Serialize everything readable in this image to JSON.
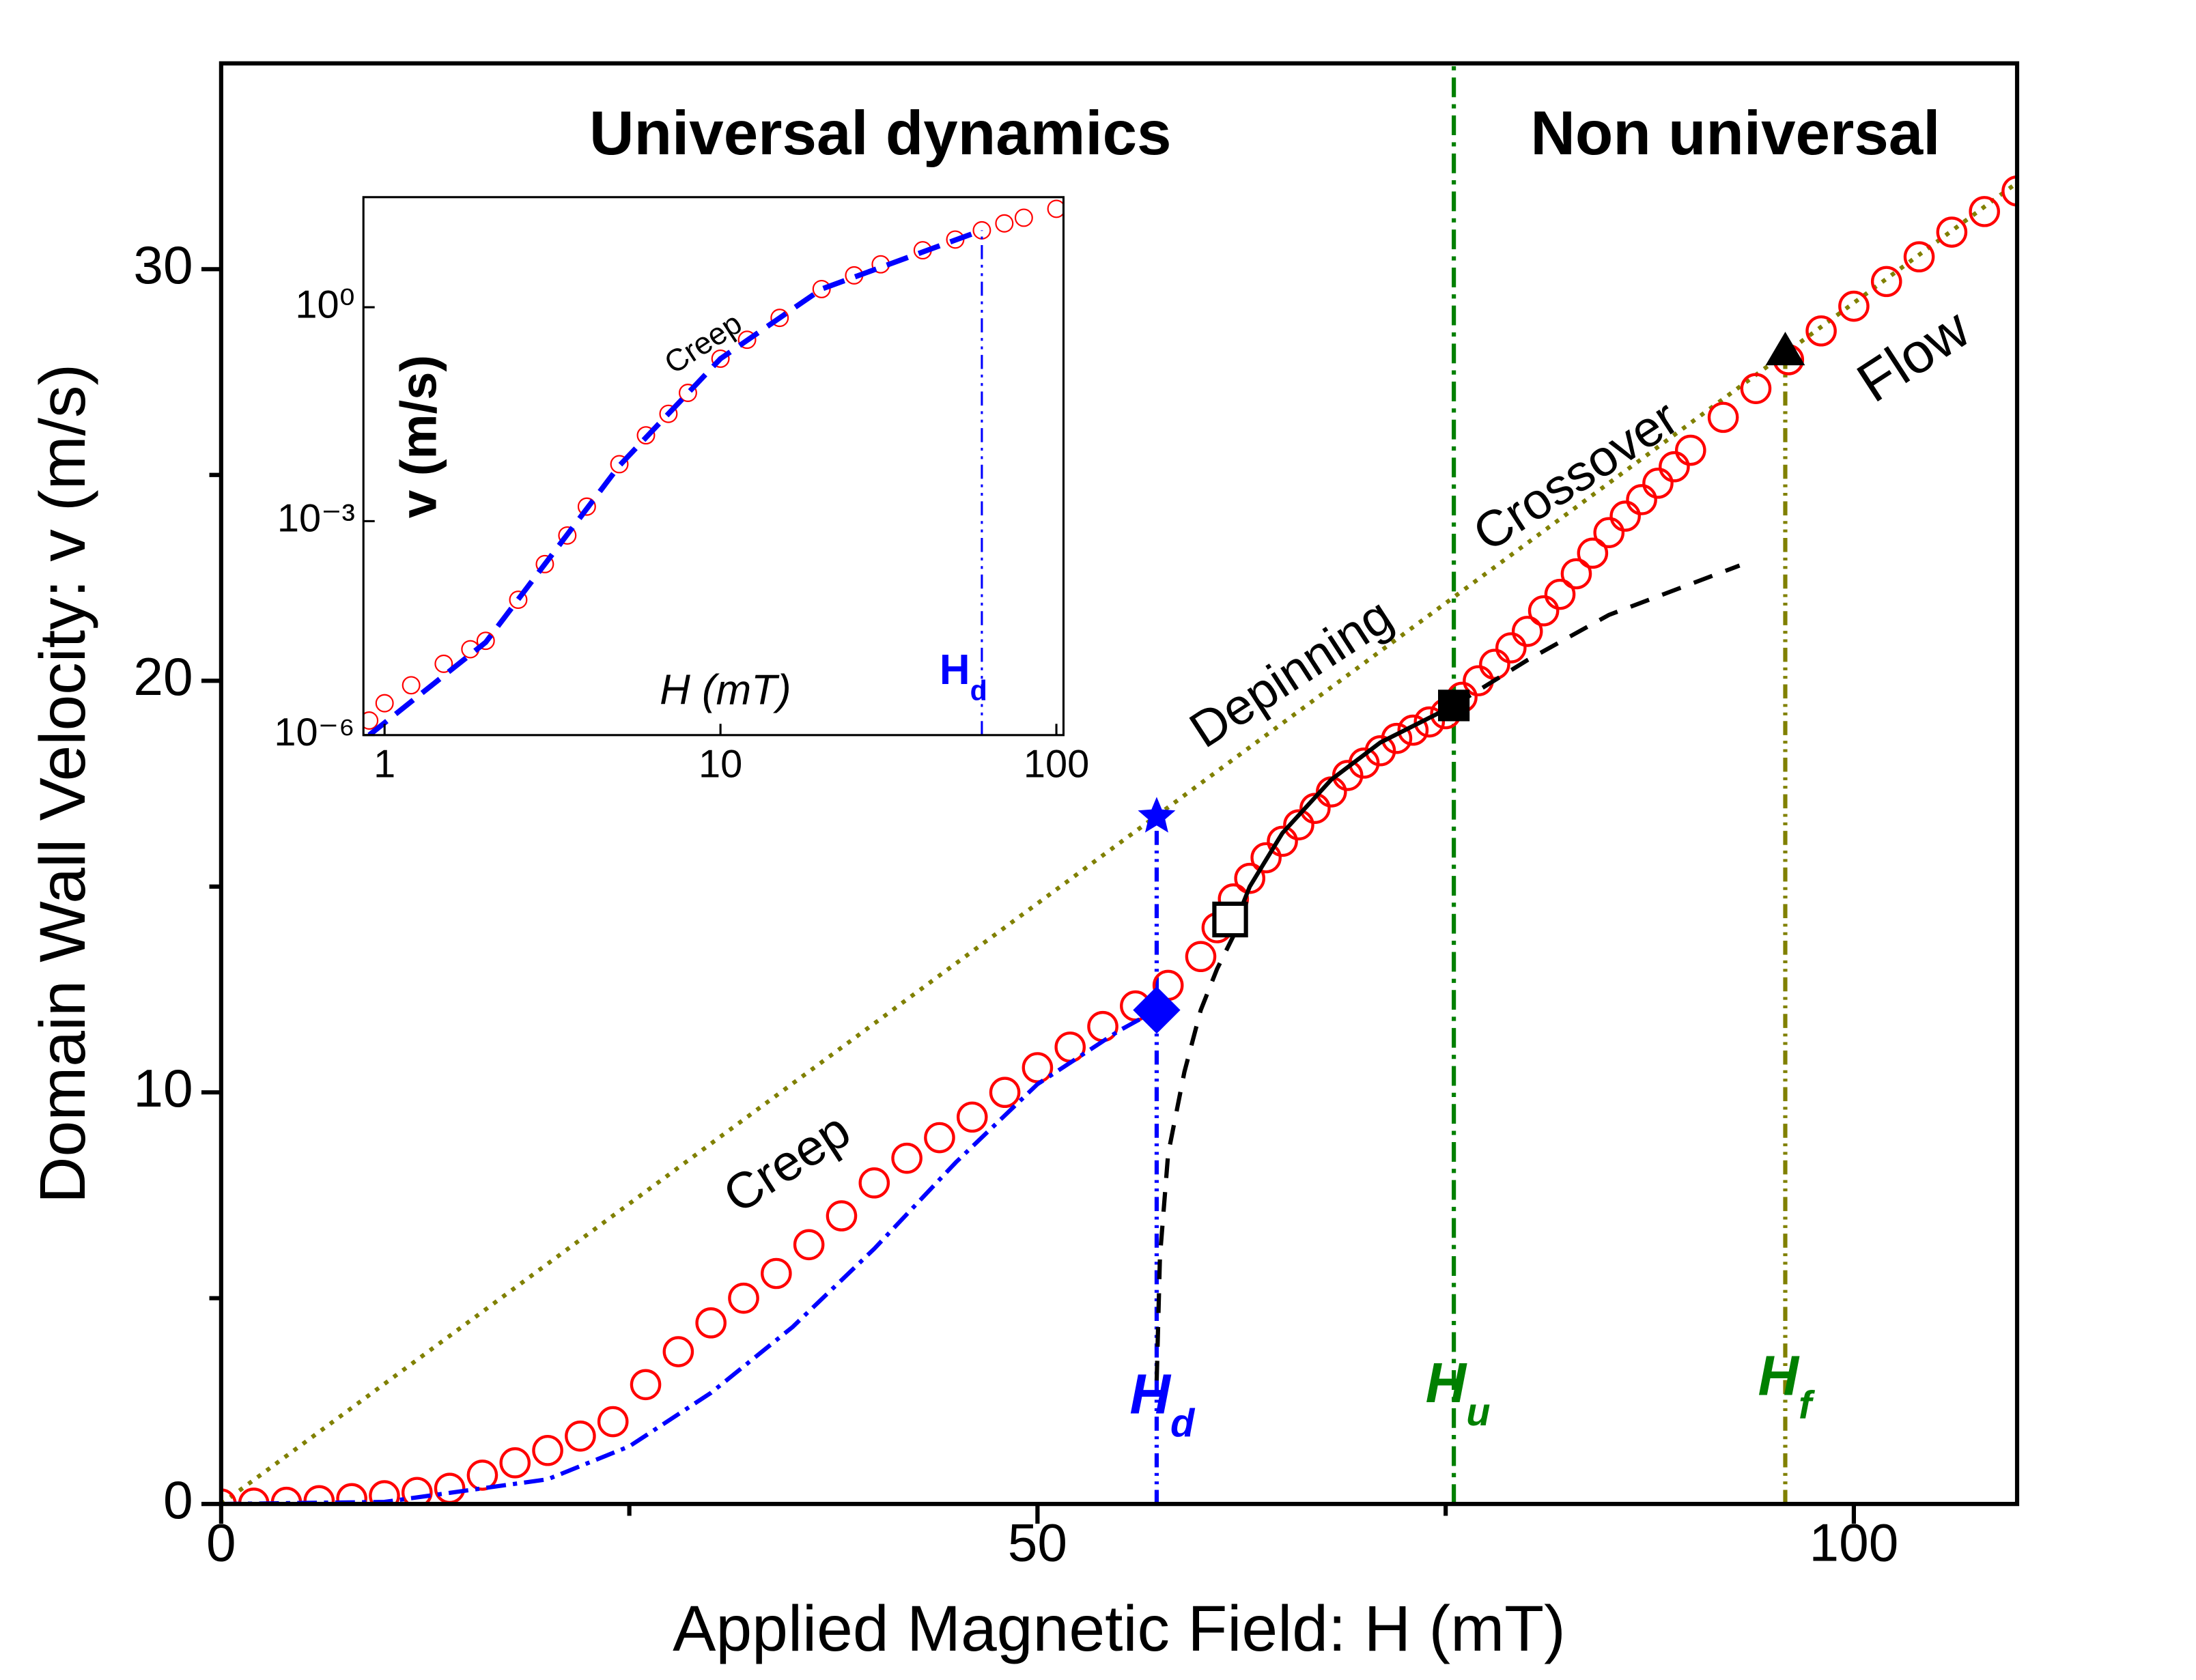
{
  "chart_data": [
    {
      "type": "scatter",
      "xlabel": "Applied Magnetic Field: H (mT)",
      "ylabel": "Domain Wall Velocity: v (m/s)",
      "xlim": [
        0,
        110
      ],
      "ylim": [
        0,
        35
      ],
      "xticks": [
        0,
        50,
        100
      ],
      "yticks": [
        0,
        10,
        20,
        30
      ],
      "xminor": [
        25,
        75
      ],
      "yminor": [
        5,
        15,
        25
      ],
      "annotations": [
        {
          "text": "Universal dynamics"
        },
        {
          "text": "Non universal"
        },
        {
          "text": "Creep"
        },
        {
          "text": "Depinning"
        },
        {
          "text": "Crossover"
        },
        {
          "text": "Flow"
        },
        {
          "text": "H",
          "sub": "d"
        },
        {
          "text": "H",
          "sub": "u"
        },
        {
          "text": "H",
          "sub": "f"
        }
      ],
      "series": [
        {
          "color": "#808000",
          "line": "dot",
          "x": [
            0,
            110
          ],
          "values": [
            0,
            32.1
          ]
        },
        {
          "color": "#008000",
          "line": "dashdot",
          "x": [
            75.5,
            75.5
          ],
          "values": [
            0,
            35
          ]
        },
        {
          "color": "#808000",
          "line": "dashdotdot",
          "x": [
            95.8,
            95.8
          ],
          "values": [
            0,
            28
          ]
        },
        {
          "color": "#0000ff",
          "line": "dashdotdot",
          "x": [
            57.3,
            57.3
          ],
          "values": [
            0,
            16.7
          ]
        },
        {
          "color": "#ff0000",
          "marker": "open-circle",
          "x": [
            0,
            2,
            4,
            6,
            8,
            10,
            12,
            14,
            16,
            18,
            20,
            22,
            24,
            26,
            28,
            30,
            32,
            34,
            36,
            38,
            40,
            42,
            44,
            46,
            48,
            50,
            52,
            54,
            56,
            58,
            60,
            61,
            62,
            63,
            64,
            65,
            66,
            67,
            68,
            69,
            70,
            71,
            72,
            73,
            74,
            75,
            76,
            77,
            78,
            79,
            80,
            81,
            82,
            83,
            84,
            85,
            86,
            87,
            88,
            89,
            90,
            92,
            94,
            96,
            98,
            100,
            102,
            104,
            106,
            108,
            110
          ],
          "values": [
            0,
            0.02,
            0.04,
            0.08,
            0.13,
            0.2,
            0.28,
            0.38,
            0.7,
            1.0,
            1.3,
            1.65,
            2.0,
            2.9,
            3.7,
            4.4,
            5.0,
            5.6,
            6.3,
            7.0,
            7.8,
            8.4,
            8.9,
            9.4,
            10.0,
            10.6,
            11.1,
            11.6,
            12.1,
            12.6,
            13.3,
            14.0,
            14.7,
            15.2,
            15.7,
            16.1,
            16.5,
            16.9,
            17.3,
            17.7,
            18.0,
            18.3,
            18.6,
            18.8,
            19.0,
            19.2,
            19.6,
            20.0,
            20.4,
            20.8,
            21.2,
            21.7,
            22.1,
            22.6,
            23.1,
            23.6,
            24.0,
            24.4,
            24.8,
            25.2,
            25.6,
            26.4,
            27.1,
            27.8,
            28.5,
            29.1,
            29.7,
            30.3,
            30.9,
            31.4,
            31.9
          ]
        },
        {
          "color": "#0000ff",
          "line": "dashdot",
          "x": [
            0,
            10,
            20,
            25,
            30,
            35,
            40,
            45,
            50,
            55,
            57.3
          ],
          "values": [
            0,
            0.05,
            0.6,
            1.4,
            2.7,
            4.3,
            6.2,
            8.3,
            10.2,
            11.5,
            12
          ]
        },
        {
          "color": "#000000",
          "line": "dash",
          "x": [
            57.3,
            57.5,
            58,
            59,
            60,
            61,
            62
          ],
          "values": [
            3,
            6,
            8.5,
            10.5,
            12,
            13,
            13.8
          ]
        },
        {
          "color": "#000000",
          "line": "solid",
          "x": [
            61.8,
            63,
            65,
            68,
            71,
            75.5
          ],
          "values": [
            13.8,
            15,
            16.3,
            17.6,
            18.5,
            19.4
          ]
        },
        {
          "color": "#000000",
          "line": "dash",
          "x": [
            75.5,
            80,
            85,
            93
          ],
          "values": [
            19.4,
            20.5,
            21.6,
            22.8
          ]
        },
        {
          "color": "#0000ff",
          "marker": "star",
          "x": [
            57.3
          ],
          "values": [
            16.7
          ]
        },
        {
          "color": "#0000ff",
          "marker": "diamond",
          "x": [
            57.3
          ],
          "values": [
            12
          ]
        },
        {
          "color": "#000000",
          "marker": "open-square",
          "x": [
            61.8
          ],
          "values": [
            14.2
          ]
        },
        {
          "color": "#000000",
          "marker": "square",
          "x": [
            75.5
          ],
          "values": [
            19.4
          ]
        },
        {
          "color": "#000000",
          "marker": "triangle",
          "x": [
            95.8
          ],
          "values": [
            28
          ]
        }
      ]
    },
    {
      "type": "scatter",
      "xlabel": "H (mT)",
      "ylabel": "v (m/s)",
      "xlog": true,
      "ylog": true,
      "xlim": [
        0.865,
        105
      ],
      "ylim": [
        1e-06,
        35
      ],
      "xticks": [
        1,
        10,
        100
      ],
      "yticks": [
        {
          "value": 1e-06,
          "label": "10⁻⁶"
        },
        {
          "value": 0.001,
          "label": "10⁻³"
        },
        {
          "value": 1,
          "label": "10⁰"
        }
      ],
      "annotations": [
        {
          "text": "Creep"
        },
        {
          "text": "H",
          "sub": "d"
        }
      ],
      "series": [
        {
          "color": "#ff0000",
          "marker": "open-circle",
          "x": [
            0.9,
            1,
            1.2,
            1.5,
            1.8,
            2,
            2.5,
            3,
            3.5,
            4,
            5,
            6,
            7,
            8,
            10,
            12,
            15,
            20,
            25,
            30,
            40,
            50,
            60,
            70,
            80,
            100
          ],
          "values": [
            1.6e-06,
            2.8e-06,
            5e-06,
            1e-05,
            1.6e-05,
            2.1e-05,
            7.9e-05,
            0.00025,
            0.00063,
            0.0016,
            0.0063,
            0.016,
            0.032,
            0.063,
            0.19,
            0.35,
            0.71,
            1.8,
            2.8,
            4.0,
            6.3,
            8.9,
            12,
            15,
            18,
            24
          ]
        },
        {
          "color": "#0000ff",
          "line": "dashthick",
          "x": [
            0.9,
            2,
            5,
            10,
            20,
            60
          ],
          "values": [
            1e-06,
            2e-05,
            0.006,
            0.19,
            1.8,
            12
          ]
        },
        {
          "color": "#0000ff",
          "line": "dashdotdot",
          "x": [
            60,
            60
          ],
          "values": [
            1e-06,
            12
          ]
        }
      ]
    }
  ]
}
